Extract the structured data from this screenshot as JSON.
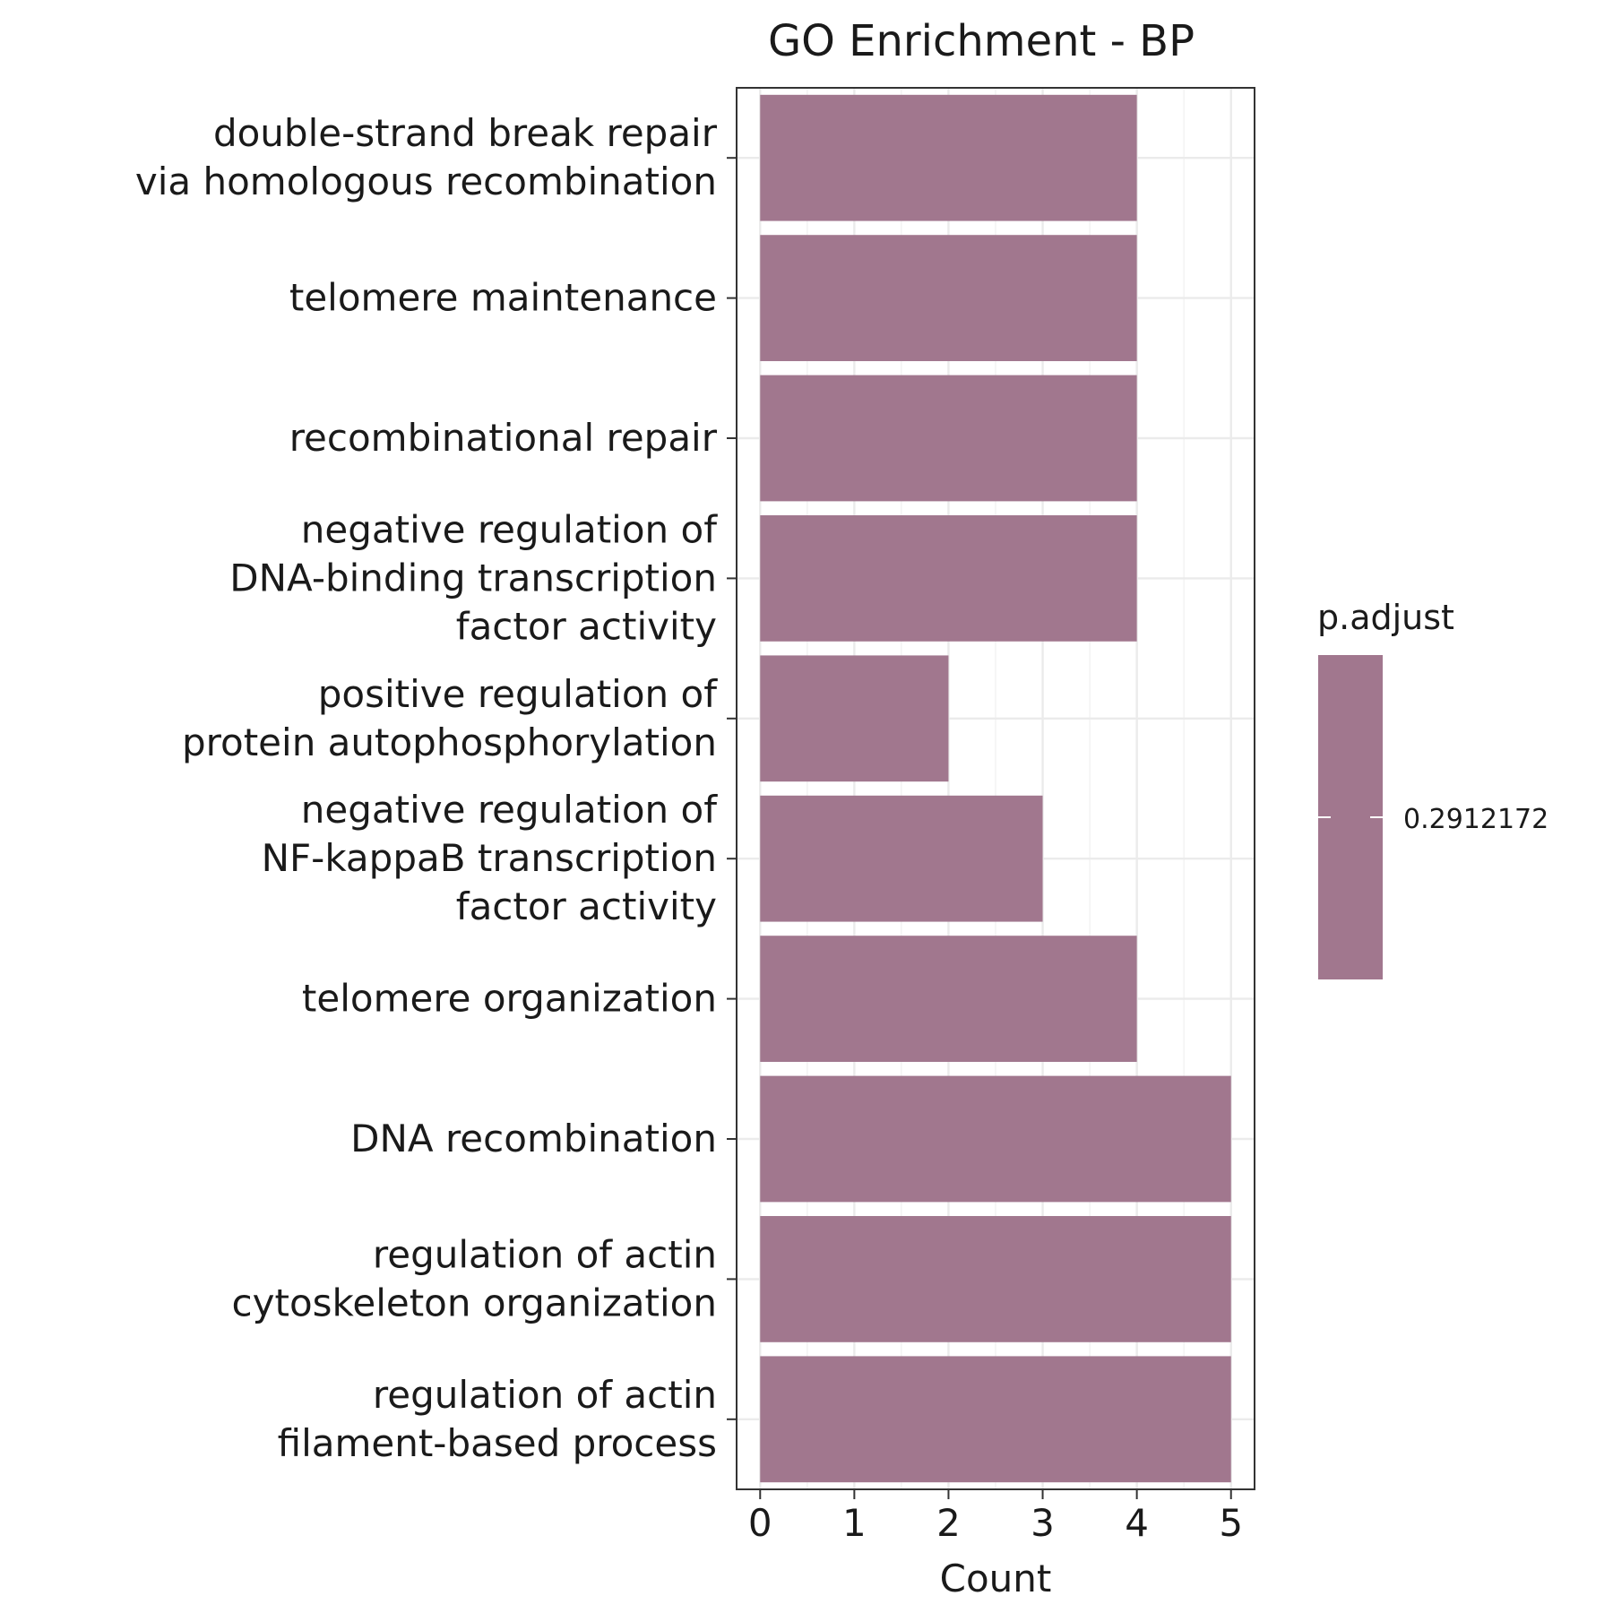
{
  "chart_data": {
    "type": "bar",
    "orientation": "horizontal",
    "title": "GO Enrichment - BP",
    "xlabel": "Count",
    "ylabel": "",
    "xlim": [
      -0.25,
      5.25
    ],
    "x_ticks": [
      "0",
      "1",
      "2",
      "3",
      "4",
      "5"
    ],
    "grid": true,
    "bar_color": "#a1778e",
    "categories": [
      [
        "double-strand break repair",
        "via homologous recombination"
      ],
      [
        "telomere maintenance"
      ],
      [
        "recombinational repair"
      ],
      [
        "negative regulation of",
        "DNA-binding transcription",
        "factor activity"
      ],
      [
        "positive regulation of",
        "protein autophosphorylation"
      ],
      [
        "negative regulation of",
        "NF-kappaB transcription",
        "factor activity"
      ],
      [
        "telomere organization"
      ],
      [
        "DNA recombination"
      ],
      [
        "regulation of actin",
        "cytoskeleton organization"
      ],
      [
        "regulation of actin",
        "filament-based process"
      ]
    ],
    "values": [
      4,
      4,
      4,
      4,
      2,
      3,
      4,
      5,
      5,
      5
    ],
    "legend": {
      "title": "p.adjust",
      "labels": [
        "0.2912172"
      ],
      "placement": "right"
    }
  }
}
